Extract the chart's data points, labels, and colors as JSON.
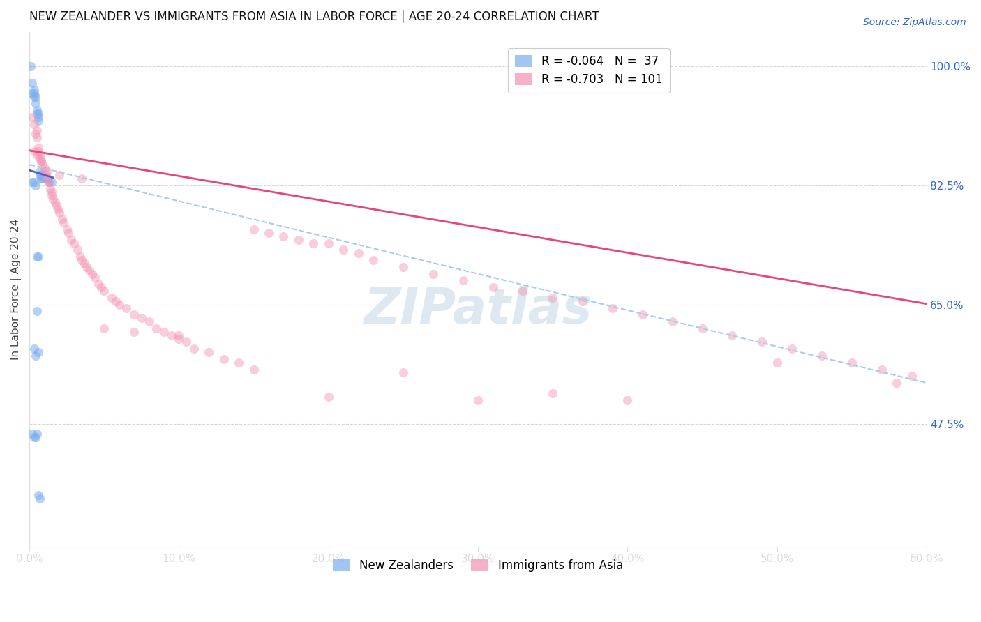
{
  "title": "NEW ZEALANDER VS IMMIGRANTS FROM ASIA IN LABOR FORCE | AGE 20-24 CORRELATION CHART",
  "source_text": "Source: ZipAtlas.com",
  "ylabel": "In Labor Force | Age 20-24",
  "xlim": [
    0.0,
    0.6
  ],
  "ylim": [
    0.295,
    1.05
  ],
  "ytick_vals": [
    0.475,
    0.65,
    0.825,
    1.0
  ],
  "ytick_labels": [
    "47.5%",
    "65.0%",
    "82.5%",
    "100.0%"
  ],
  "xtick_vals": [
    0.0,
    0.1,
    0.2,
    0.3,
    0.4,
    0.5,
    0.6
  ],
  "xtick_labels": [
    "0.0%",
    "10.0%",
    "20.0%",
    "30.0%",
    "40.0%",
    "50.0%",
    "60.0%"
  ],
  "nz_color": "#7aaff0",
  "asia_color": "#f590b0",
  "nz_trend_color": "#4466cc",
  "asia_trend_color": "#e8457a",
  "dash_color": "#aaccee",
  "grid_color": "#cccccc",
  "bg_color": "#ffffff",
  "label_color": "#3366cc",
  "title_color": "#111111",
  "watermark_color": "#dde8f0",
  "marker_size": 90,
  "nz_alpha": 0.55,
  "asia_alpha": 0.45,
  "nz_x": [
    0.001,
    0.002,
    0.002,
    0.003,
    0.003,
    0.003,
    0.004,
    0.004,
    0.005,
    0.005,
    0.006,
    0.006,
    0.006,
    0.007,
    0.007,
    0.008,
    0.008,
    0.009,
    0.01,
    0.012,
    0.013,
    0.015,
    0.002,
    0.003,
    0.004,
    0.005,
    0.006,
    0.003,
    0.004,
    0.005,
    0.006,
    0.007,
    0.002,
    0.003,
    0.004,
    0.005,
    0.006
  ],
  "nz_y": [
    1.0,
    0.975,
    0.96,
    0.965,
    0.96,
    0.955,
    0.955,
    0.945,
    0.935,
    0.93,
    0.93,
    0.925,
    0.92,
    0.845,
    0.84,
    0.84,
    0.835,
    0.835,
    0.835,
    0.835,
    0.83,
    0.83,
    0.83,
    0.83,
    0.825,
    0.72,
    0.72,
    0.585,
    0.575,
    0.64,
    0.58,
    0.365,
    0.46,
    0.455,
    0.455,
    0.46,
    0.37
  ],
  "asia_x": [
    0.002,
    0.003,
    0.004,
    0.005,
    0.005,
    0.006,
    0.006,
    0.007,
    0.007,
    0.008,
    0.009,
    0.01,
    0.01,
    0.011,
    0.012,
    0.013,
    0.014,
    0.015,
    0.015,
    0.016,
    0.017,
    0.018,
    0.019,
    0.02,
    0.022,
    0.023,
    0.025,
    0.026,
    0.028,
    0.03,
    0.032,
    0.034,
    0.035,
    0.037,
    0.038,
    0.04,
    0.042,
    0.044,
    0.046,
    0.048,
    0.05,
    0.055,
    0.058,
    0.06,
    0.065,
    0.07,
    0.075,
    0.08,
    0.085,
    0.09,
    0.095,
    0.1,
    0.105,
    0.11,
    0.12,
    0.13,
    0.14,
    0.15,
    0.16,
    0.17,
    0.18,
    0.19,
    0.2,
    0.21,
    0.22,
    0.23,
    0.25,
    0.27,
    0.29,
    0.31,
    0.33,
    0.35,
    0.37,
    0.39,
    0.41,
    0.43,
    0.45,
    0.47,
    0.49,
    0.51,
    0.53,
    0.55,
    0.57,
    0.59,
    0.003,
    0.005,
    0.008,
    0.012,
    0.02,
    0.035,
    0.05,
    0.07,
    0.1,
    0.15,
    0.2,
    0.25,
    0.3,
    0.35,
    0.4,
    0.5,
    0.58
  ],
  "asia_y": [
    0.925,
    0.915,
    0.9,
    0.895,
    0.905,
    0.88,
    0.875,
    0.87,
    0.865,
    0.86,
    0.855,
    0.85,
    0.845,
    0.84,
    0.835,
    0.83,
    0.82,
    0.815,
    0.81,
    0.805,
    0.8,
    0.795,
    0.79,
    0.785,
    0.775,
    0.77,
    0.76,
    0.755,
    0.745,
    0.74,
    0.73,
    0.72,
    0.715,
    0.71,
    0.705,
    0.7,
    0.695,
    0.69,
    0.68,
    0.675,
    0.67,
    0.66,
    0.655,
    0.65,
    0.645,
    0.635,
    0.63,
    0.625,
    0.615,
    0.61,
    0.605,
    0.6,
    0.595,
    0.585,
    0.58,
    0.57,
    0.565,
    0.76,
    0.755,
    0.75,
    0.745,
    0.74,
    0.74,
    0.73,
    0.725,
    0.715,
    0.705,
    0.695,
    0.685,
    0.675,
    0.67,
    0.66,
    0.655,
    0.645,
    0.635,
    0.625,
    0.615,
    0.605,
    0.595,
    0.585,
    0.575,
    0.565,
    0.555,
    0.545,
    0.875,
    0.87,
    0.86,
    0.845,
    0.84,
    0.835,
    0.615,
    0.61,
    0.605,
    0.555,
    0.515,
    0.55,
    0.51,
    0.52,
    0.51,
    0.565,
    0.535
  ],
  "nz_trend_x": [
    0.0,
    0.016
  ],
  "nz_trend_y": [
    0.847,
    0.836
  ],
  "asia_trend_x": [
    0.0,
    0.6
  ],
  "asia_trend_y": [
    0.876,
    0.651
  ],
  "dash_trend_x": [
    0.0,
    0.6
  ],
  "dash_trend_y": [
    0.855,
    0.535
  ],
  "legend1_label": "R = -0.064   N =  37",
  "legend2_label": "R = -0.703   N = 101",
  "bottom_legend1": "New Zealanders",
  "bottom_legend2": "Immigrants from Asia",
  "watermark": "ZIPatlas"
}
